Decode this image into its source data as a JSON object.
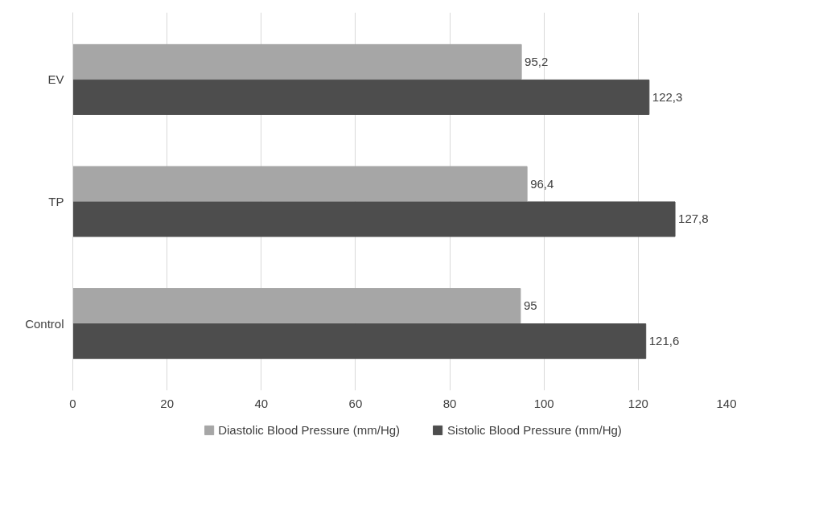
{
  "chart_data": {
    "type": "bar",
    "orientation": "horizontal",
    "categories": [
      "EV",
      "TP",
      "Control"
    ],
    "series": [
      {
        "name": "Diastolic Blood Pressure (mm/Hg)",
        "color": "#a6a6a6",
        "values": [
          95.2,
          96.4,
          95
        ],
        "value_labels": [
          "95,2",
          "96,4",
          "95"
        ]
      },
      {
        "name": "Sistolic Blood Pressure (mm/Hg)",
        "color": "#4d4d4d",
        "values": [
          122.3,
          127.8,
          121.6
        ],
        "value_labels": [
          "122,3",
          "127,8",
          "121,6"
        ]
      }
    ],
    "xlim": [
      0,
      140
    ],
    "xticks": [
      0,
      20,
      40,
      60,
      80,
      100,
      120,
      140
    ],
    "grid": "x",
    "legend": "bottom"
  }
}
